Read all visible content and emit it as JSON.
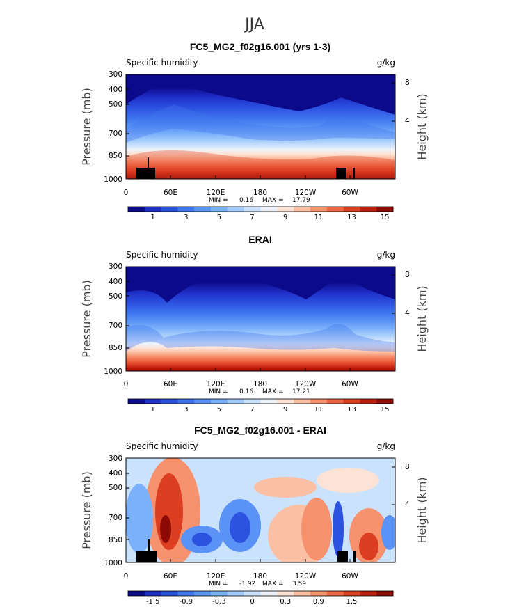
{
  "figure": {
    "suptitle": "JJA",
    "field_label": "Specific humidity",
    "units": "g/kg",
    "ylabel_left": "Pressure (mb)",
    "ylabel_right": "Height (km)"
  },
  "chart_data": [
    {
      "type": "heatmap",
      "title": "FC5_MG2_f02g16.001 (yrs 1-3)",
      "left_label": "Specific humidity",
      "right_label": "g/kg",
      "xlabel": "",
      "ylabel": "Pressure (mb)",
      "ylabel_right": "Height (km)",
      "x_ticks": [
        "0",
        "60E",
        "120E",
        "180",
        "120W",
        "60W"
      ],
      "x_tick_values": [
        0,
        60,
        120,
        180,
        240,
        300
      ],
      "xlim": [
        0,
        360
      ],
      "y_ticks": [
        "300",
        "400",
        "500",
        "700",
        "850",
        "1000"
      ],
      "y_tick_values": [
        300,
        400,
        500,
        700,
        850,
        1000
      ],
      "ylim": [
        1000,
        300
      ],
      "y_scale": "log",
      "right_ticks": [
        "8",
        "4"
      ],
      "right_tick_values": [
        8,
        4
      ],
      "min_label": "MIN =",
      "min_value": "0.16",
      "max_label": "MAX =",
      "max_value": "17.79",
      "colorbar_labels": [
        "1",
        "3",
        "5",
        "7",
        "9",
        "11",
        "13",
        "15"
      ],
      "colorbar_colors": [
        "#0a0a8a",
        "#1f2fc8",
        "#2c52e0",
        "#3f74ee",
        "#5a93f5",
        "#7bb0fa",
        "#a3cbfc",
        "#cbe2fd",
        "#eef3fb",
        "#fde3d5",
        "#fbbfa3",
        "#f7926f",
        "#ef6545",
        "#dc3e22",
        "#bd1e0f",
        "#8e0a05"
      ]
    },
    {
      "type": "heatmap",
      "title": "ERAI",
      "left_label": "Specific humidity",
      "right_label": "g/kg",
      "xlabel": "",
      "ylabel": "Pressure (mb)",
      "ylabel_right": "Height (km)",
      "x_ticks": [
        "0",
        "60E",
        "120E",
        "180",
        "120W",
        "60W"
      ],
      "x_tick_values": [
        0,
        60,
        120,
        180,
        240,
        300
      ],
      "xlim": [
        0,
        360
      ],
      "y_ticks": [
        "300",
        "400",
        "500",
        "700",
        "850",
        "1000"
      ],
      "y_tick_values": [
        300,
        400,
        500,
        700,
        850,
        1000
      ],
      "ylim": [
        1000,
        300
      ],
      "y_scale": "log",
      "right_ticks": [
        "8",
        "4"
      ],
      "right_tick_values": [
        8,
        4
      ],
      "min_label": "MIN =",
      "min_value": "0.16",
      "max_label": "MAX =",
      "max_value": "17.21",
      "colorbar_labels": [
        "1",
        "3",
        "5",
        "7",
        "9",
        "11",
        "13",
        "15"
      ],
      "colorbar_colors": [
        "#0a0a8a",
        "#1f2fc8",
        "#2c52e0",
        "#3f74ee",
        "#5a93f5",
        "#7bb0fa",
        "#a3cbfc",
        "#cbe2fd",
        "#eef3fb",
        "#fde3d5",
        "#fbbfa3",
        "#f7926f",
        "#ef6545",
        "#dc3e22",
        "#bd1e0f",
        "#8e0a05"
      ]
    },
    {
      "type": "heatmap",
      "title": "FC5_MG2_f02g16.001 - ERAI",
      "left_label": "Specific humidity",
      "right_label": "g/kg",
      "xlabel": "",
      "ylabel": "Pressure (mb)",
      "ylabel_right": "Height (km)",
      "x_ticks": [
        "0",
        "60E",
        "120E",
        "180",
        "120W",
        "60W"
      ],
      "x_tick_values": [
        0,
        60,
        120,
        180,
        240,
        300
      ],
      "xlim": [
        0,
        360
      ],
      "y_ticks": [
        "300",
        "400",
        "500",
        "700",
        "850",
        "1000"
      ],
      "y_tick_values": [
        300,
        400,
        500,
        700,
        850,
        1000
      ],
      "ylim": [
        1000,
        300
      ],
      "y_scale": "log",
      "right_ticks": [
        "8",
        "4"
      ],
      "right_tick_values": [
        8,
        4
      ],
      "min_label": "MIN =",
      "min_value": "-1.92",
      "max_label": "MAX =",
      "max_value": "3.59",
      "colorbar_labels": [
        "-1.5",
        "-0.9",
        "-0.3",
        "0",
        "0.3",
        "0.9",
        "1.5"
      ],
      "colorbar_colors": [
        "#0a0a8a",
        "#1f2fc8",
        "#2c52e0",
        "#3f74ee",
        "#5a93f5",
        "#7bb0fa",
        "#a3cbfc",
        "#cbe2fd",
        "#eef3fb",
        "#fde3d5",
        "#fbbfa3",
        "#f7926f",
        "#ef6545",
        "#dc3e22",
        "#bd1e0f",
        "#8e0a05"
      ]
    }
  ]
}
